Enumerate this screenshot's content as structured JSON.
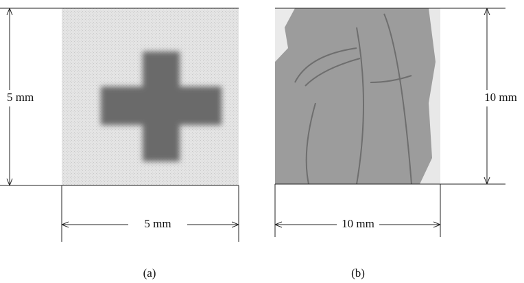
{
  "panels": [
    {
      "label": "(a)",
      "height_label": "5 mm",
      "width_label": "5 mm"
    },
    {
      "label": "(b)",
      "height_label": "10 mm",
      "width_label": "10 mm"
    }
  ]
}
